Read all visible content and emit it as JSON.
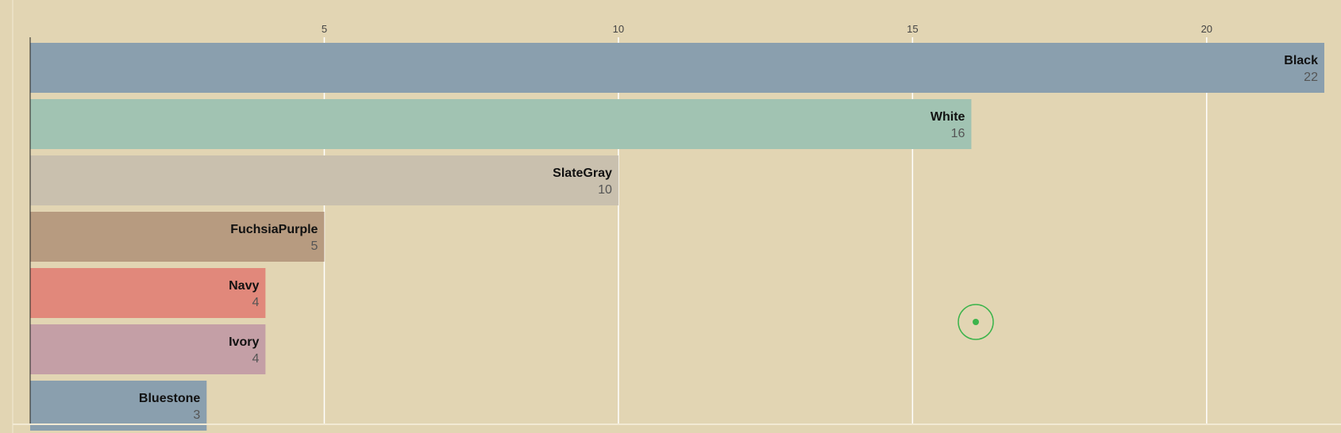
{
  "chart_data": {
    "type": "bar",
    "orientation": "horizontal",
    "categories": [
      "Black",
      "White",
      "SlateGray",
      "FuchsiaPurple",
      "Navy",
      "Ivory",
      "Bluestone"
    ],
    "values": [
      22,
      16,
      10,
      5,
      4,
      4,
      3
    ],
    "bar_colors": [
      "#8a9fae",
      "#a1c3b2",
      "#c9c0ae",
      "#b79b80",
      "#e1887b",
      "#c49fa6",
      "#8a9fae"
    ],
    "xticks": [
      5,
      10,
      15,
      20
    ],
    "xlim": [
      0,
      22
    ],
    "axis_position": "top",
    "grid": true,
    "legend": "none",
    "title": "",
    "xlabel": "",
    "ylabel": ""
  },
  "colors": {
    "background": "#e2d5b3",
    "gridline": "#ffffff",
    "cursor_indicator": "#3cb44b"
  }
}
